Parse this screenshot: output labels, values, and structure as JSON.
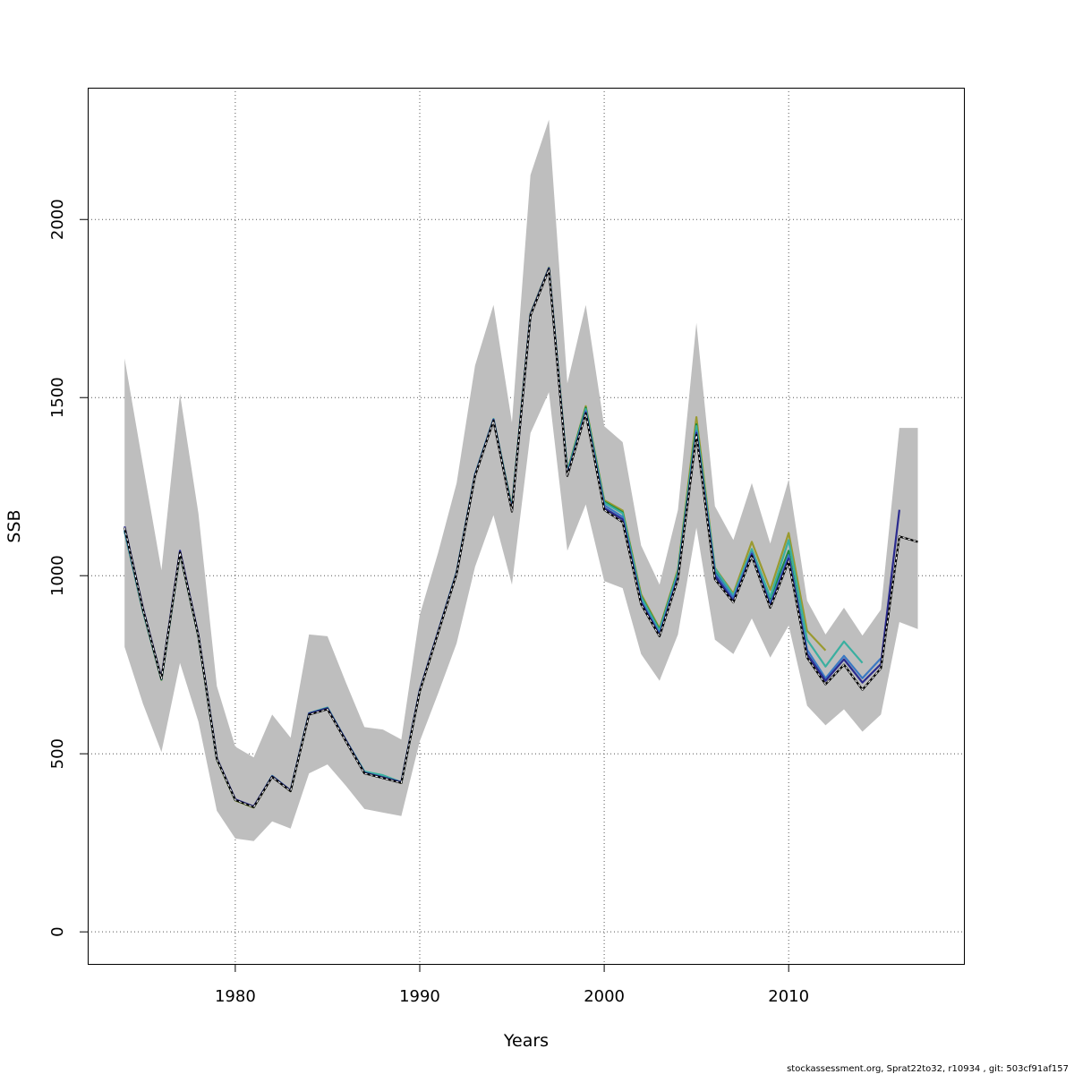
{
  "chart_data": {
    "type": "line",
    "title": "",
    "xlabel": "Years",
    "ylabel": "SSB",
    "xlim": [
      1972,
      2019.5
    ],
    "ylim": [
      -90,
      2370
    ],
    "x_ticks": [
      1980,
      1990,
      2000,
      2010
    ],
    "y_ticks": [
      0,
      500,
      1000,
      1500,
      2000
    ],
    "grid": true,
    "legend": "none",
    "confidence_band": {
      "color": "#bebebe",
      "x": [
        1974,
        1975,
        1976,
        1977,
        1978,
        1979,
        1980,
        1981,
        1982,
        1983,
        1984,
        1985,
        1986,
        1987,
        1988,
        1989,
        1990,
        1991,
        1992,
        1993,
        1994,
        1995,
        1996,
        1997,
        1998,
        1999,
        2000,
        2001,
        2002,
        2003,
        2004,
        2005,
        2006,
        2007,
        2008,
        2009,
        2010,
        2011,
        2012,
        2013,
        2014,
        2015,
        2016,
        2017
      ],
      "lower": [
        800,
        640,
        505,
        755,
        590,
        340,
        262,
        255,
        310,
        290,
        445,
        470,
        410,
        345,
        335,
        325,
        535,
        670,
        810,
        1025,
        1170,
        975,
        1400,
        1515,
        1070,
        1200,
        985,
        965,
        780,
        705,
        835,
        1135,
        820,
        780,
        880,
        770,
        860,
        635,
        580,
        625,
        562,
        610,
        870,
        850
      ],
      "upper": [
        1610,
        1310,
        1015,
        1510,
        1175,
        690,
        520,
        490,
        610,
        545,
        835,
        830,
        700,
        575,
        568,
        540,
        890,
        1065,
        1260,
        1590,
        1760,
        1430,
        2125,
        2280,
        1540,
        1760,
        1420,
        1375,
        1085,
        975,
        1185,
        1710,
        1195,
        1100,
        1260,
        1090,
        1270,
        930,
        835,
        910,
        832,
        905,
        1415,
        1415
      ]
    },
    "series": [
      {
        "color": "#000000",
        "dashed": true,
        "dash_color": "#ffffff",
        "x": [
          1974,
          1975,
          1976,
          1977,
          1978,
          1979,
          1980,
          1981,
          1982,
          1983,
          1984,
          1985,
          1986,
          1987,
          1988,
          1989,
          1990,
          1991,
          1992,
          1993,
          1994,
          1995,
          1996,
          1997,
          1998,
          1999,
          2000,
          2001,
          2002,
          2003,
          2004,
          2005,
          2006,
          2007,
          2008,
          2009,
          2010,
          2011,
          2012,
          2013,
          2014,
          2015,
          2016,
          2017
        ],
        "values": [
          1135,
          905,
          710,
          1065,
          830,
          485,
          370,
          350,
          435,
          395,
          610,
          625,
          535,
          445,
          432,
          418,
          675,
          840,
          1005,
          1280,
          1435,
          1180,
          1730,
          1860,
          1280,
          1455,
          1185,
          1150,
          920,
          830,
          990,
          1395,
          990,
          925,
          1055,
          910,
          1040,
          770,
          695,
          750,
          680,
          740,
          1110,
          1095
        ]
      },
      {
        "color": "#2a2a8e",
        "dashed": false,
        "x": [
          1974,
          1975,
          1976,
          1977,
          1978,
          1979,
          1980,
          1981,
          1982,
          1983,
          1984,
          1985,
          1986,
          1987,
          1988,
          1989,
          1990,
          1991,
          1992,
          1993,
          1994,
          1995,
          1996,
          1997,
          1998,
          1999,
          2000,
          2001,
          2002,
          2003,
          2004,
          2005,
          2006,
          2007,
          2008,
          2009,
          2010,
          2011,
          2012,
          2013,
          2014,
          2015,
          2016
        ],
        "values": [
          1138,
          908,
          712,
          1070,
          833,
          487,
          372,
          352,
          437,
          397,
          613,
          628,
          538,
          447,
          434,
          420,
          678,
          843,
          1008,
          1283,
          1438,
          1183,
          1733,
          1863,
          1283,
          1458,
          1190,
          1158,
          925,
          833,
          995,
          1400,
          1000,
          930,
          1060,
          915,
          1048,
          780,
          705,
          765,
          700,
          752,
          1185
        ]
      },
      {
        "color": "#3a78c4",
        "dashed": false,
        "x": [
          1974,
          1975,
          1976,
          1977,
          1978,
          1979,
          1980,
          1981,
          1982,
          1983,
          1984,
          1985,
          1986,
          1987,
          1988,
          1989,
          1990,
          1991,
          1992,
          1993,
          1994,
          1995,
          1996,
          1997,
          1998,
          1999,
          2000,
          2001,
          2002,
          2003,
          2004,
          2005,
          2006,
          2007,
          2008,
          2009,
          2010,
          2011,
          2012,
          2013,
          2014,
          2015
        ],
        "values": [
          1128,
          903,
          710,
          1066,
          831,
          486,
          371,
          351,
          436,
          396,
          612,
          627,
          537,
          446,
          433,
          419,
          677,
          842,
          1007,
          1282,
          1437,
          1185,
          1732,
          1862,
          1286,
          1462,
          1198,
          1165,
          930,
          838,
          1000,
          1405,
          1008,
          938,
          1065,
          922,
          1058,
          792,
          712,
          775,
          712,
          768
        ]
      },
      {
        "color": "#3aafa0",
        "dashed": false,
        "x": [
          1974,
          1975,
          1976,
          1977,
          1978,
          1979,
          1980,
          1981,
          1982,
          1983,
          1984,
          1985,
          1986,
          1987,
          1988,
          1989,
          1990,
          1991,
          1992,
          1993,
          1994,
          1995,
          1996,
          1997,
          1998,
          1999,
          2000,
          2001,
          2002,
          2003,
          2004,
          2005,
          2006,
          2007,
          2008,
          2009,
          2010,
          2011,
          2012,
          2013,
          2014
        ],
        "values": [
          1125,
          900,
          708,
          1064,
          829,
          485,
          370,
          350,
          438,
          396,
          614,
          630,
          538,
          450,
          440,
          420,
          678,
          843,
          1010,
          1285,
          1440,
          1188,
          1733,
          1863,
          1290,
          1468,
          1205,
          1175,
          940,
          845,
          1010,
          1420,
          1020,
          945,
          1075,
          940,
          1100,
          820,
          745,
          815,
          755
        ]
      },
      {
        "color": "#1e8a3a",
        "dashed": false,
        "x": [
          1974,
          1975,
          1976,
          1977,
          1978,
          1979,
          1980,
          1981,
          1982,
          1983,
          1984,
          1985,
          1986,
          1987,
          1988,
          1989,
          1990,
          1991,
          1992,
          1993,
          1994,
          1995,
          1996,
          1997,
          1998,
          1999,
          2000,
          2001,
          2002,
          2003,
          2004,
          2005,
          2006,
          2007,
          2008,
          2009,
          2010,
          2011
        ],
        "values": [
          1126,
          901,
          709,
          1065,
          830,
          486,
          371,
          351,
          437,
          397,
          613,
          629,
          538,
          448,
          437,
          419,
          677,
          842,
          1009,
          1284,
          1439,
          1190,
          1734,
          1864,
          1292,
          1472,
          1208,
          1178,
          942,
          848,
          1012,
          1425,
          1015,
          940,
          1070,
          935,
          1070,
          790
        ]
      },
      {
        "color": "#9a9a30",
        "dashed": false,
        "x": [
          1974,
          1975,
          1976,
          1977,
          1978,
          1979,
          1980,
          1981,
          1982,
          1983,
          1984,
          1985,
          1986,
          1987,
          1988,
          1989,
          1990,
          1991,
          1992,
          1993,
          1994,
          1995,
          1996,
          1997,
          1998,
          1999,
          2000,
          2001,
          2002,
          2003,
          2004,
          2005,
          2006,
          2007,
          2008,
          2009,
          2010,
          2011,
          2012
        ],
        "values": [
          1124,
          899,
          707,
          1063,
          828,
          484,
          369,
          349,
          436,
          395,
          612,
          628,
          537,
          447,
          436,
          418,
          676,
          841,
          1008,
          1283,
          1438,
          1192,
          1735,
          1865,
          1293,
          1476,
          1212,
          1183,
          948,
          852,
          1018,
          1445,
          1022,
          950,
          1095,
          960,
          1120,
          845,
          790
        ]
      }
    ]
  },
  "footer": "stockassessment.org, Sprat22to32, r10934 , git: 503cf91af157"
}
